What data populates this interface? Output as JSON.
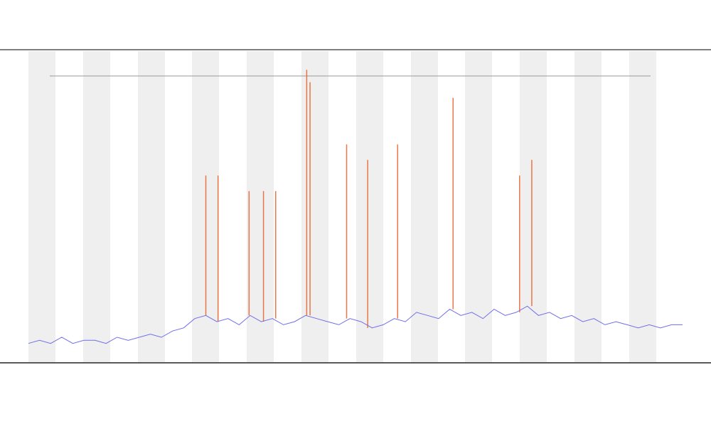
{
  "chart_data": {
    "type": "line",
    "x": [
      0,
      1,
      2,
      3,
      4,
      5,
      6,
      7,
      8,
      9,
      10,
      11,
      12,
      13,
      14,
      15,
      16,
      17,
      18,
      19,
      20,
      21,
      22,
      23,
      24,
      25,
      26,
      27,
      28,
      29,
      30,
      31,
      32,
      33,
      34,
      35,
      36,
      37,
      38,
      39,
      40,
      41,
      42,
      43,
      44,
      45,
      46,
      47,
      48,
      49,
      50,
      51,
      52,
      53,
      54,
      55,
      56,
      57,
      58,
      59
    ],
    "xlim": [
      0,
      59
    ],
    "ylim": [
      0,
      100
    ],
    "series": [
      {
        "color": "#6f6fe8",
        "values": [
          6,
          7,
          6,
          8,
          6,
          7,
          7,
          6,
          8,
          7,
          8,
          9,
          8,
          10,
          11,
          14,
          15,
          13,
          14,
          12,
          15,
          13,
          14,
          12,
          13,
          15,
          14,
          13,
          12,
          14,
          13,
          11,
          12,
          14,
          13,
          16,
          15,
          14,
          17,
          15,
          16,
          14,
          17,
          15,
          16,
          18,
          15,
          16,
          14,
          15,
          13,
          14,
          12,
          13,
          12,
          11,
          12,
          11,
          12,
          12
        ]
      }
    ],
    "peaks": {
      "color": "#e8602a",
      "x": [
        16.0,
        17.1,
        19.9,
        21.2,
        22.3,
        25.1,
        25.4,
        28.7,
        30.6,
        33.3,
        38.3,
        44.3,
        45.4
      ],
      "values": [
        60,
        60,
        55,
        55,
        55,
        94,
        90,
        70,
        65,
        70,
        85,
        60,
        65
      ]
    },
    "grid": false
  }
}
